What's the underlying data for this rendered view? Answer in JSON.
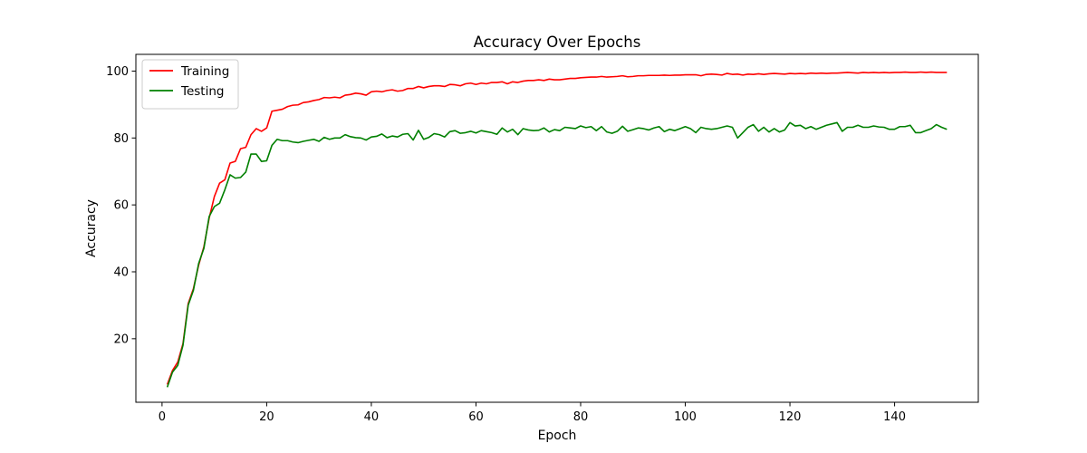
{
  "chart_data": {
    "type": "line",
    "title": "Accuracy Over Epochs",
    "xlabel": "Epoch",
    "ylabel": "Accuracy",
    "xlim": [
      -5,
      156
    ],
    "ylim": [
      1,
      105
    ],
    "xticks": [
      0,
      20,
      40,
      60,
      80,
      100,
      120,
      140
    ],
    "yticks": [
      20,
      40,
      60,
      80,
      100
    ],
    "grid": false,
    "legend_position": "top-left",
    "x_start": 1,
    "series": [
      {
        "name": "Training",
        "color": "#ff0000",
        "values": [
          6.3,
          10.5,
          13.0,
          18.5,
          30.5,
          35.0,
          42.0,
          47.5,
          56.0,
          62.5,
          66.5,
          67.5,
          72.5,
          73.0,
          76.8,
          77.2,
          81.0,
          82.8,
          82.0,
          83.0,
          88.0,
          88.3,
          88.6,
          89.4,
          89.8,
          89.9,
          90.6,
          90.8,
          91.2,
          91.5,
          92.1,
          92.0,
          92.2,
          92.0,
          92.8,
          93.0,
          93.4,
          93.2,
          92.8,
          93.8,
          94.0,
          93.8,
          94.2,
          94.4,
          94.0,
          94.2,
          94.8,
          94.8,
          95.4,
          95.0,
          95.4,
          95.6,
          95.6,
          95.4,
          96.0,
          95.9,
          95.6,
          96.2,
          96.4,
          96.0,
          96.4,
          96.2,
          96.6,
          96.6,
          96.8,
          96.2,
          96.8,
          96.6,
          97.0,
          97.2,
          97.2,
          97.4,
          97.2,
          97.6,
          97.4,
          97.4,
          97.6,
          97.8,
          97.8,
          98.0,
          98.1,
          98.2,
          98.2,
          98.4,
          98.2,
          98.3,
          98.4,
          98.6,
          98.3,
          98.4,
          98.6,
          98.6,
          98.7,
          98.7,
          98.7,
          98.8,
          98.7,
          98.8,
          98.8,
          98.9,
          98.9,
          98.9,
          98.6,
          99.0,
          99.1,
          99.0,
          98.8,
          99.3,
          99.0,
          99.1,
          98.8,
          99.1,
          99.0,
          99.2,
          99.0,
          99.2,
          99.3,
          99.2,
          99.1,
          99.3,
          99.2,
          99.3,
          99.2,
          99.4,
          99.3,
          99.4,
          99.3,
          99.4,
          99.4,
          99.5,
          99.6,
          99.5,
          99.4,
          99.6,
          99.5,
          99.6,
          99.5,
          99.6,
          99.5,
          99.6,
          99.6,
          99.7,
          99.6,
          99.6,
          99.7,
          99.6,
          99.7,
          99.6,
          99.6,
          99.6
        ]
      },
      {
        "name": "Testing",
        "color": "#008000",
        "values": [
          5.5,
          10.0,
          12.0,
          18.0,
          30.0,
          34.5,
          42.5,
          47.0,
          56.5,
          59.5,
          60.5,
          64.5,
          69.0,
          68.0,
          68.2,
          69.8,
          75.2,
          75.2,
          73.0,
          73.2,
          77.8,
          79.6,
          79.2,
          79.2,
          78.8,
          78.6,
          79.0,
          79.3,
          79.6,
          79.0,
          80.2,
          79.6,
          80.0,
          80.0,
          81.0,
          80.4,
          80.1,
          80.0,
          79.4,
          80.3,
          80.5,
          81.2,
          80.1,
          80.6,
          80.3,
          81.1,
          81.3,
          79.4,
          82.3,
          79.6,
          80.2,
          81.3,
          81.0,
          80.3,
          81.9,
          82.2,
          81.4,
          81.6,
          82.0,
          81.5,
          82.2,
          81.9,
          81.6,
          81.1,
          83.0,
          81.8,
          82.6,
          81.0,
          82.8,
          82.4,
          82.2,
          82.3,
          83.0,
          81.8,
          82.5,
          82.2,
          83.2,
          83.0,
          82.8,
          83.6,
          83.1,
          83.4,
          82.2,
          83.4,
          81.8,
          81.4,
          82.0,
          83.5,
          82.0,
          82.5,
          83.0,
          82.8,
          82.4,
          83.0,
          83.4,
          81.9,
          82.6,
          82.2,
          82.8,
          83.4,
          82.8,
          81.6,
          83.2,
          82.8,
          82.6,
          82.8,
          83.2,
          83.6,
          83.2,
          80.0,
          81.6,
          83.2,
          84.0,
          82.0,
          83.2,
          81.8,
          82.8,
          81.8,
          82.4,
          84.6,
          83.6,
          83.8,
          82.8,
          83.4,
          82.6,
          83.2,
          83.8,
          84.2,
          84.6,
          82.0,
          83.2,
          83.2,
          83.8,
          83.2,
          83.2,
          83.6,
          83.3,
          83.2,
          82.6,
          82.6,
          83.4,
          83.4,
          83.8,
          81.6,
          81.6,
          82.2,
          82.8,
          84.0,
          83.2,
          82.6
        ]
      }
    ]
  }
}
